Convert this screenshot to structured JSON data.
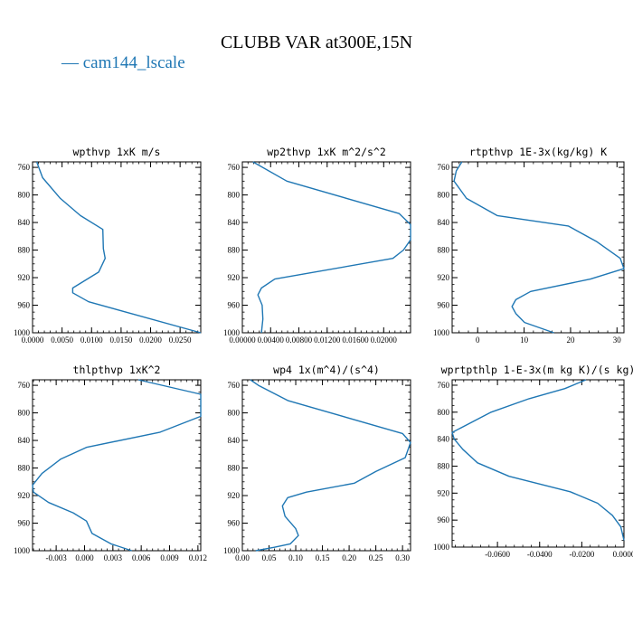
{
  "figure_title": "CLUBB VAR at300E,15N",
  "legend": {
    "label": "cam144_lscale",
    "color": "#1f77b4"
  },
  "chart_data": [
    {
      "type": "line",
      "title": "wpthvp  1xK m/s",
      "xlim": [
        0.0,
        0.0285
      ],
      "ylim": [
        1000,
        752
      ],
      "xticks": [
        "0.0000",
        "0.0050",
        "0.0100",
        "0.0150",
        "0.0200",
        "0.0250"
      ],
      "xtick_values": [
        0.0,
        0.005,
        0.01,
        0.015,
        0.02,
        0.025
      ],
      "yticks": [
        "760",
        "800",
        "840",
        "880",
        "920",
        "960",
        "1000"
      ],
      "ytick_values": [
        760,
        800,
        840,
        880,
        920,
        960,
        1000
      ],
      "series": [
        {
          "x": [
            0.0007,
            0.0017,
            0.0047,
            0.0081,
            0.0119,
            0.012,
            0.0123,
            0.0112,
            0.0068,
            0.0068,
            0.0095,
            0.0285
          ],
          "y": [
            752,
            775,
            805,
            830,
            850,
            878,
            892,
            912,
            935,
            942,
            955,
            1000
          ]
        }
      ]
    },
    {
      "type": "line",
      "title": "wp2thvp  1xK m^2/s^2",
      "xlim": [
        0.0,
        0.0238
      ],
      "ylim": [
        1000,
        752
      ],
      "xticks": [
        "0.00000",
        "0.00400",
        "0.00800",
        "0.01200",
        "0.01600",
        "0.02000"
      ],
      "xtick_values": [
        0.0,
        0.004,
        0.008,
        0.012,
        0.016,
        0.02
      ],
      "yticks": [
        "760",
        "800",
        "840",
        "880",
        "920",
        "960",
        "1000"
      ],
      "ytick_values": [
        760,
        800,
        840,
        880,
        920,
        960,
        1000
      ],
      "series": [
        {
          "x": [
            0.0015,
            0.0063,
            0.0222,
            0.0238,
            0.0238,
            0.0228,
            0.0213,
            0.0046,
            0.0027,
            0.0022,
            0.0028,
            0.0029,
            0.0027
          ],
          "y": [
            752,
            780,
            827,
            843,
            865,
            880,
            892,
            922,
            935,
            945,
            960,
            980,
            1000
          ]
        }
      ]
    },
    {
      "type": "line",
      "title": "rtpthvp  1E-3x(kg/kg) K",
      "xlim": [
        -0.0055,
        0.0315
      ],
      "ylim": [
        1000,
        752
      ],
      "xticks": [
        "0",
        "10",
        "20",
        "30"
      ],
      "xtick_values": [
        0.0,
        0.01,
        0.02,
        0.03
      ],
      "yticks": [
        "760",
        "800",
        "840",
        "880",
        "920",
        "960",
        "1000"
      ],
      "ytick_values": [
        760,
        800,
        840,
        880,
        920,
        960,
        1000
      ],
      "series": [
        {
          "x": [
            -0.0034,
            -0.0046,
            -0.0051,
            -0.0024,
            0.0042,
            0.0195,
            0.0257,
            0.0307,
            0.0315,
            0.0243,
            0.0114,
            0.0082,
            0.0074,
            0.0082,
            0.0101,
            0.0164
          ],
          "y": [
            752,
            765,
            780,
            805,
            830,
            845,
            868,
            892,
            907,
            922,
            940,
            952,
            962,
            972,
            985,
            1000
          ]
        }
      ]
    },
    {
      "type": "line",
      "title": "thlpthvp  1xK^2",
      "xlim": [
        -0.0055,
        0.0123
      ],
      "ylim": [
        1000,
        752
      ],
      "xticks": [
        "-0.003",
        "0.000",
        "0.003",
        "0.006",
        "0.009",
        "0.012"
      ],
      "xtick_values": [
        -0.003,
        0.0,
        0.003,
        0.006,
        0.009,
        0.012
      ],
      "yticks": [
        "760",
        "800",
        "840",
        "880",
        "920",
        "960",
        "1000"
      ],
      "ytick_values": [
        760,
        800,
        840,
        880,
        920,
        960,
        1000
      ],
      "series": [
        {
          "x": [
            0.0057,
            0.0123,
            0.0123,
            0.008,
            0.0002,
            -0.0025,
            -0.0045,
            -0.0055,
            -0.0054,
            -0.0038,
            -0.0012,
            0.0002,
            0.0008,
            0.0028,
            0.005
          ],
          "y": [
            752,
            773,
            805,
            828,
            850,
            867,
            888,
            905,
            915,
            930,
            945,
            957,
            975,
            990,
            1000
          ]
        }
      ]
    },
    {
      "type": "line",
      "title": "wp4  1x(m^4)/(s^4)",
      "xlim": [
        0.0,
        0.315
      ],
      "ylim": [
        1000,
        752
      ],
      "xticks": [
        "0.00",
        "0.05",
        "0.10",
        "0.15",
        "0.20",
        "0.25",
        "0.30"
      ],
      "xtick_values": [
        0.0,
        0.05,
        0.1,
        0.15,
        0.2,
        0.25,
        0.3
      ],
      "yticks": [
        "760",
        "800",
        "840",
        "880",
        "920",
        "960",
        "1000"
      ],
      "ytick_values": [
        760,
        800,
        840,
        880,
        920,
        960,
        1000
      ],
      "series": [
        {
          "x": [
            0.015,
            0.03,
            0.085,
            0.3,
            0.315,
            0.305,
            0.25,
            0.21,
            0.12,
            0.085,
            0.075,
            0.08,
            0.1,
            0.105,
            0.09,
            0.06,
            0.025
          ],
          "y": [
            752,
            760,
            782,
            830,
            843,
            865,
            885,
            902,
            915,
            923,
            935,
            950,
            968,
            978,
            990,
            995,
            1000
          ]
        }
      ]
    },
    {
      "type": "line",
      "title": "wprtpthlp  1-E-3x(m kg K)/(s kg)",
      "xlim": [
        -0.0815,
        0.0
      ],
      "ylim": [
        1000,
        752
      ],
      "xticks": [
        "-0.0600",
        "-0.0400",
        "-0.0200",
        "0.0000"
      ],
      "xtick_values": [
        -0.06,
        -0.04,
        -0.02,
        0.0
      ],
      "yticks": [
        "760",
        "800",
        "840",
        "880",
        "920",
        "960",
        "1000"
      ],
      "ytick_values": [
        760,
        800,
        840,
        880,
        920,
        960,
        1000
      ],
      "series": [
        {
          "x": [
            -0.018,
            -0.028,
            -0.045,
            -0.063,
            -0.0815,
            -0.0805,
            -0.0765,
            -0.0695,
            -0.0545,
            -0.0255,
            -0.0125,
            -0.0055,
            -0.0015,
            0.0
          ],
          "y": [
            752,
            765,
            780,
            800,
            830,
            840,
            855,
            875,
            895,
            918,
            935,
            953,
            970,
            990
          ]
        }
      ]
    }
  ]
}
